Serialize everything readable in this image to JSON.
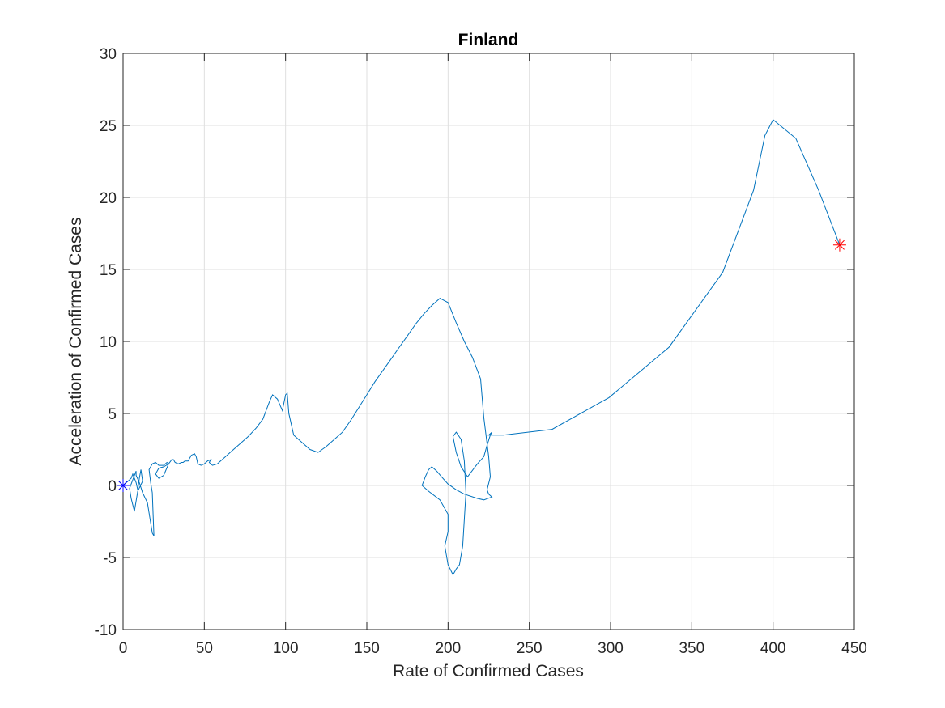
{
  "chart_data": {
    "type": "line",
    "title": "Finland",
    "xlabel": "Rate of Confirmed Cases",
    "ylabel": "Acceleration of Confirmed Cases",
    "xlim": [
      0,
      450
    ],
    "ylim": [
      -10,
      30
    ],
    "xticks": [
      0,
      50,
      100,
      150,
      200,
      250,
      300,
      350,
      400,
      450
    ],
    "yticks": [
      -10,
      -5,
      0,
      5,
      10,
      15,
      20,
      25,
      30
    ],
    "grid": true,
    "line_color": "#0072bd",
    "start_marker": {
      "x": 0,
      "y": 0,
      "color": "#0000ff",
      "symbol": "asterisk"
    },
    "end_marker": {
      "x": 441,
      "y": 16.7,
      "color": "#ff0000",
      "symbol": "asterisk"
    },
    "series": [
      {
        "x": [
          0,
          1,
          2,
          3,
          5,
          6,
          7,
          8,
          9,
          10,
          11,
          12,
          9,
          7,
          5,
          4,
          6,
          8,
          8,
          10,
          12,
          15,
          18,
          19,
          18,
          17,
          16,
          18,
          20,
          22,
          25,
          26,
          27,
          28,
          25,
          22,
          20,
          22,
          25,
          28,
          30,
          31,
          32,
          34,
          36,
          37,
          38,
          40,
          42,
          44,
          45,
          46,
          48,
          50,
          52,
          54,
          53,
          55,
          58,
          62,
          67,
          72,
          77,
          82,
          86,
          88,
          90,
          92,
          95,
          98,
          100,
          101,
          102,
          105,
          110,
          115,
          120,
          125,
          130,
          135,
          140,
          145,
          150,
          155,
          160,
          165,
          170,
          175,
          180,
          185,
          190,
          195,
          200,
          205,
          210,
          215,
          220,
          222,
          225,
          226,
          224,
          225,
          227,
          222,
          218,
          210,
          205,
          200,
          196,
          193,
          190,
          188,
          186,
          185,
          184,
          188,
          195,
          200,
          200,
          198,
          200,
          203,
          205,
          207,
          209,
          211,
          210,
          208,
          205,
          203,
          205,
          208,
          212,
          218,
          222,
          224,
          226,
          227,
          226,
          225,
          234,
          264,
          299,
          336,
          369,
          388,
          395,
          400,
          414,
          428,
          441
        ],
        "y": [
          0,
          0.1,
          0.2,
          0.3,
          0.5,
          0.8,
          0.5,
          0.2,
          -0.3,
          0.5,
          1.1,
          0.3,
          -0.4,
          -1.8,
          -0.9,
          -0.2,
          0.4,
          1,
          0.7,
          0.2,
          -0.5,
          -1.2,
          -3.3,
          -3.5,
          -0.5,
          0.2,
          1.1,
          1.5,
          1.6,
          1.4,
          1.4,
          1.5,
          1.6,
          1.5,
          1.3,
          1.2,
          0.8,
          0.5,
          0.7,
          1.5,
          1.8,
          1.8,
          1.6,
          1.5,
          1.6,
          1.6,
          1.7,
          1.7,
          2.1,
          2.2,
          2.0,
          1.5,
          1.4,
          1.5,
          1.7,
          1.8,
          1.6,
          1.4,
          1.5,
          1.9,
          2.4,
          2.9,
          3.4,
          4.0,
          4.6,
          5.2,
          5.8,
          6.3,
          6.0,
          5.2,
          6.3,
          6.4,
          5.0,
          3.5,
          3.0,
          2.5,
          2.3,
          2.7,
          3.2,
          3.7,
          4.5,
          5.4,
          6.3,
          7.2,
          8.0,
          8.8,
          9.6,
          10.4,
          11.2,
          11.9,
          12.5,
          13.0,
          12.7,
          11.3,
          10.0,
          8.9,
          7.4,
          4.7,
          2.0,
          0.6,
          -0.3,
          -0.6,
          -0.8,
          -1.0,
          -0.9,
          -0.6,
          -0.3,
          0.1,
          0.6,
          1.0,
          1.3,
          1.1,
          0.6,
          0.3,
          0.0,
          -0.4,
          -1.0,
          -2.0,
          -3.2,
          -4.2,
          -5.5,
          -6.2,
          -5.8,
          -5.5,
          -4.2,
          -0.5,
          1.7,
          3.2,
          3.7,
          3.4,
          2.3,
          1.3,
          0.6,
          1.5,
          2.0,
          2.8,
          3.5,
          3.7,
          3.6,
          3.5,
          3.5,
          3.9,
          6.1,
          9.6,
          14.8,
          20.5,
          24.3,
          25.4,
          24.1,
          20.5,
          16.7
        ]
      }
    ]
  }
}
